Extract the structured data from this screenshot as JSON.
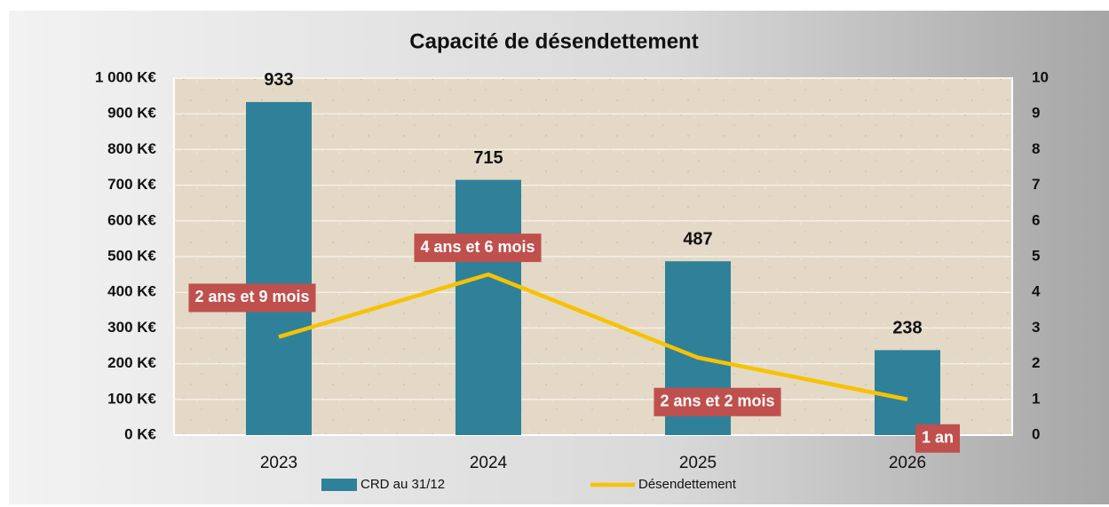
{
  "chart_data": {
    "type": "bar",
    "title": "Capacité de désendettement",
    "categories": [
      "2023",
      "2024",
      "2025",
      "2026"
    ],
    "series": [
      {
        "name": "CRD au 31/12",
        "color": "#2f8199",
        "values": [
          933,
          715,
          487,
          238
        ]
      },
      {
        "name": "Désendettement",
        "color": "#f7c200",
        "type": "line",
        "axis": "y2",
        "values": [
          2.75,
          4.5,
          2.17,
          1
        ],
        "value_labels": [
          "2 ans et 9 mois",
          "4 ans et 6 mois",
          "2 ans et 2 mois",
          "1 an"
        ]
      }
    ],
    "ylim": [
      0,
      1000
    ],
    "yticks": [
      {
        "value": 0,
        "label": "0 K€"
      },
      {
        "value": 100,
        "label": "100 K€"
      },
      {
        "value": 200,
        "label": "200 K€"
      },
      {
        "value": 300,
        "label": "300 K€"
      },
      {
        "value": 400,
        "label": "400 K€"
      },
      {
        "value": 500,
        "label": "500 K€"
      },
      {
        "value": 600,
        "label": "600 K€"
      },
      {
        "value": 700,
        "label": "700 K€"
      },
      {
        "value": 800,
        "label": "800 K€"
      },
      {
        "value": 900,
        "label": "900 K€"
      },
      {
        "value": 1000,
        "label": "1 000 K€"
      }
    ],
    "y2lim": [
      0,
      10
    ],
    "y2ticks": [
      0,
      1,
      2,
      3,
      4,
      5,
      6,
      7,
      8,
      9,
      10
    ],
    "grid": true
  }
}
